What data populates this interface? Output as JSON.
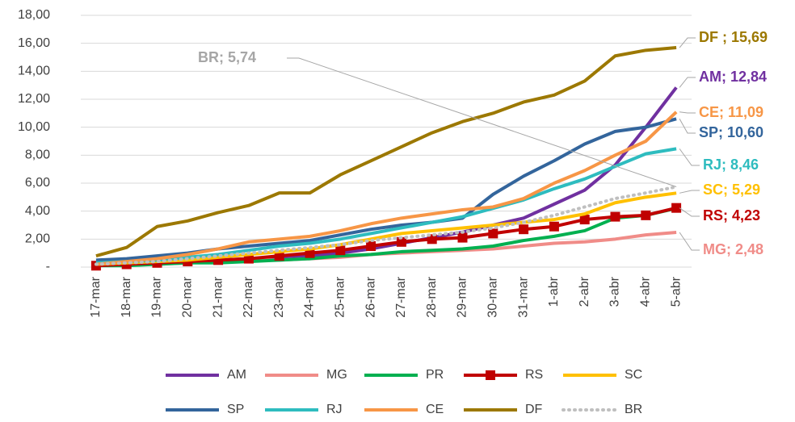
{
  "chart_data": {
    "type": "line",
    "categories": [
      "17-mar",
      "18-mar",
      "19-mar",
      "20-mar",
      "21-mar",
      "22-mar",
      "23-mar",
      "24-mar",
      "25-mar",
      "26-mar",
      "27-mar",
      "28-mar",
      "29-mar",
      "30-mar",
      "31-mar",
      "1-abr",
      "2-abr",
      "3-abr",
      "4-abr",
      "5-abr"
    ],
    "ylim": [
      0,
      18
    ],
    "yticks": [
      {
        "value": 0,
        "label": "-"
      },
      {
        "value": 2,
        "label": "2,00"
      },
      {
        "value": 4,
        "label": "4,00"
      },
      {
        "value": 6,
        "label": "6,00"
      },
      {
        "value": 8,
        "label": "8,00"
      },
      {
        "value": 10,
        "label": "10,00"
      },
      {
        "value": 12,
        "label": "12,00"
      },
      {
        "value": 14,
        "label": "14,00"
      },
      {
        "value": 16,
        "label": "16,00"
      },
      {
        "value": 18,
        "label": "18,00"
      }
    ],
    "grid": true,
    "legend": "bottom",
    "series": [
      {
        "name": "AM",
        "color": "#7030a0",
        "values": [
          0.1,
          0.2,
          0.3,
          0.4,
          0.5,
          0.6,
          0.7,
          0.8,
          1.0,
          1.3,
          1.7,
          2.1,
          2.5,
          3.0,
          3.5,
          4.5,
          5.5,
          7.3,
          10.0,
          12.84
        ],
        "end_label": "AM;  12,84"
      },
      {
        "name": "MG",
        "color": "#f08c88",
        "values": [
          0.1,
          0.2,
          0.2,
          0.3,
          0.4,
          0.5,
          0.5,
          0.6,
          0.7,
          0.9,
          1.0,
          1.1,
          1.2,
          1.3,
          1.5,
          1.7,
          1.8,
          2.0,
          2.3,
          2.48
        ],
        "end_label": "MG;  2,48"
      },
      {
        "name": "PR",
        "color": "#00b050",
        "values": [
          0.1,
          0.1,
          0.2,
          0.3,
          0.3,
          0.4,
          0.5,
          0.6,
          0.8,
          0.9,
          1.1,
          1.2,
          1.3,
          1.5,
          1.9,
          2.2,
          2.6,
          3.5,
          3.7,
          4.2
        ]
      },
      {
        "name": "RS",
        "color": "#c00000",
        "values": [
          0.1,
          0.2,
          0.3,
          0.4,
          0.5,
          0.6,
          0.8,
          1.0,
          1.2,
          1.5,
          1.8,
          2.0,
          2.1,
          2.4,
          2.7,
          2.9,
          3.4,
          3.6,
          3.7,
          4.23
        ],
        "end_label": "RS;  4,23",
        "marker": "square"
      },
      {
        "name": "SC",
        "color": "#ffc000",
        "values": [
          0.2,
          0.3,
          0.4,
          0.5,
          0.7,
          0.9,
          1.1,
          1.3,
          1.6,
          2.0,
          2.4,
          2.6,
          2.8,
          3.0,
          3.2,
          3.4,
          3.8,
          4.6,
          5.0,
          5.29
        ],
        "end_label": "SC;  5,29"
      },
      {
        "name": "SP",
        "color": "#33659c",
        "values": [
          0.5,
          0.6,
          0.8,
          1.0,
          1.3,
          1.5,
          1.7,
          1.9,
          2.3,
          2.7,
          3.0,
          3.2,
          3.5,
          5.2,
          6.5,
          7.6,
          8.8,
          9.7,
          10.0,
          10.6
        ],
        "end_label": "SP;  10,60"
      },
      {
        "name": "RJ",
        "color": "#2ebcbf",
        "values": [
          0.3,
          0.4,
          0.5,
          0.7,
          0.9,
          1.2,
          1.5,
          1.7,
          2.0,
          2.4,
          2.8,
          3.2,
          3.6,
          4.2,
          4.8,
          5.6,
          6.3,
          7.2,
          8.1,
          8.46
        ],
        "end_label": "RJ;  8,46"
      },
      {
        "name": "CE",
        "color": "#f79646",
        "values": [
          0.2,
          0.4,
          0.6,
          0.9,
          1.3,
          1.8,
          2.0,
          2.2,
          2.6,
          3.1,
          3.5,
          3.8,
          4.1,
          4.3,
          4.9,
          6.0,
          6.9,
          8.0,
          9.0,
          11.09
        ],
        "end_label": "CE;  11,09"
      },
      {
        "name": "DF",
        "color": "#9c7800",
        "values": [
          0.8,
          1.4,
          2.9,
          3.3,
          3.9,
          4.4,
          5.3,
          5.3,
          6.6,
          7.6,
          8.6,
          9.6,
          10.4,
          11.0,
          11.8,
          12.3,
          13.3,
          15.1,
          15.5,
          15.69
        ],
        "end_label": "DF ;  15,69"
      },
      {
        "name": "BR",
        "color": "#bfbfbf",
        "values": [
          0.2,
          0.3,
          0.4,
          0.6,
          0.8,
          1.0,
          1.2,
          1.4,
          1.6,
          1.9,
          2.1,
          2.3,
          2.5,
          2.8,
          3.2,
          3.7,
          4.3,
          4.9,
          5.3,
          5.74
        ],
        "end_label": "BR;  5,74",
        "dash": "dotted"
      }
    ]
  }
}
